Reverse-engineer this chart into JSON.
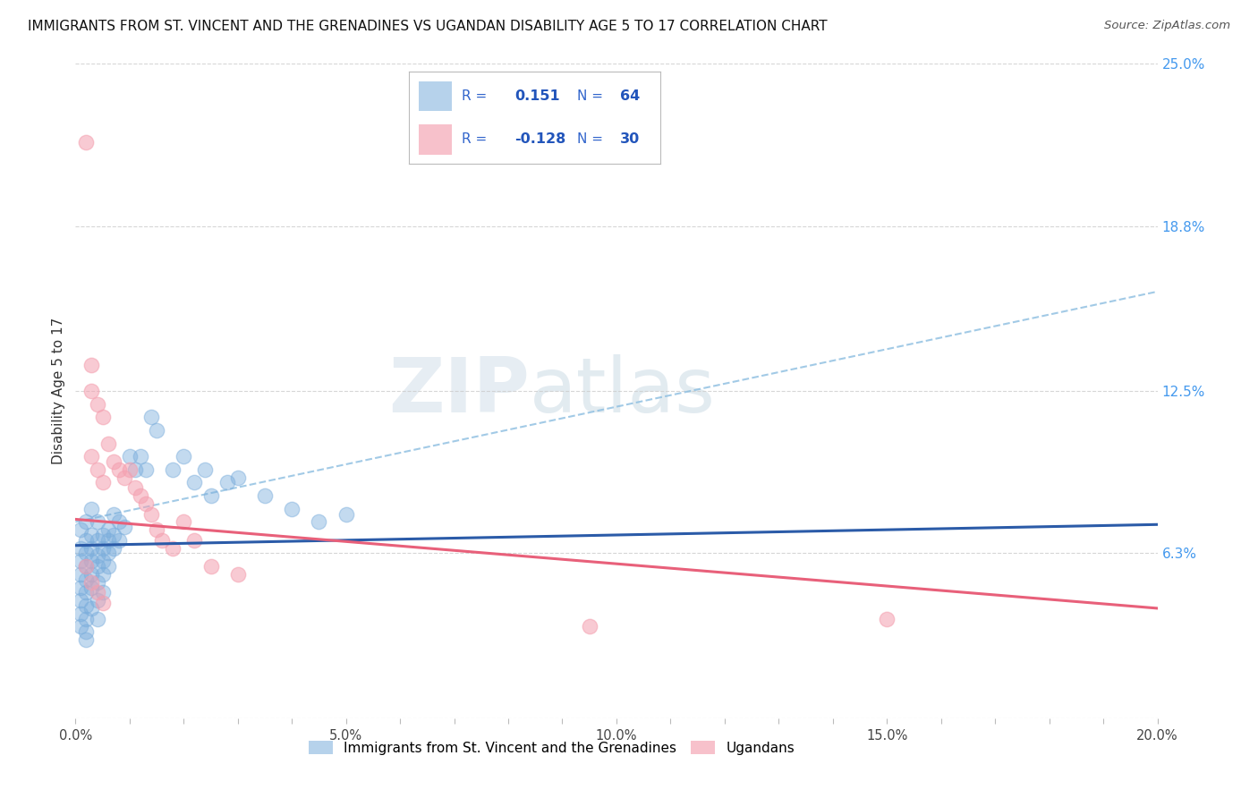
{
  "title": "IMMIGRANTS FROM ST. VINCENT AND THE GRENADINES VS UGANDAN DISABILITY AGE 5 TO 17 CORRELATION CHART",
  "source": "Source: ZipAtlas.com",
  "ylabel": "Disability Age 5 to 17",
  "xlim": [
    0.0,
    0.2
  ],
  "ylim": [
    0.0,
    0.25
  ],
  "ytick_labels_right": [
    "25.0%",
    "18.8%",
    "12.5%",
    "6.3%",
    ""
  ],
  "ytick_positions_right": [
    0.25,
    0.188,
    0.125,
    0.063,
    0.0
  ],
  "blue_color": "#7AADDC",
  "pink_color": "#F4A0B0",
  "blue_line_color": "#2B5BA8",
  "pink_line_color": "#E8607A",
  "blue_dash_color": "#8BBDE0",
  "blue_line_x": [
    0.0,
    0.2
  ],
  "blue_line_y": [
    0.066,
    0.074
  ],
  "pink_line_x": [
    0.0,
    0.2
  ],
  "pink_line_y": [
    0.076,
    0.042
  ],
  "dash_line_x": [
    0.0,
    0.2
  ],
  "dash_line_y": [
    0.075,
    0.163
  ],
  "blue_scatter": [
    [
      0.001,
      0.072
    ],
    [
      0.001,
      0.065
    ],
    [
      0.001,
      0.06
    ],
    [
      0.001,
      0.055
    ],
    [
      0.001,
      0.05
    ],
    [
      0.001,
      0.045
    ],
    [
      0.001,
      0.04
    ],
    [
      0.001,
      0.035
    ],
    [
      0.002,
      0.075
    ],
    [
      0.002,
      0.068
    ],
    [
      0.002,
      0.063
    ],
    [
      0.002,
      0.058
    ],
    [
      0.002,
      0.053
    ],
    [
      0.002,
      0.048
    ],
    [
      0.002,
      0.043
    ],
    [
      0.002,
      0.038
    ],
    [
      0.002,
      0.033
    ],
    [
      0.003,
      0.08
    ],
    [
      0.003,
      0.07
    ],
    [
      0.003,
      0.065
    ],
    [
      0.003,
      0.06
    ],
    [
      0.003,
      0.055
    ],
    [
      0.003,
      0.05
    ],
    [
      0.003,
      0.042
    ],
    [
      0.004,
      0.075
    ],
    [
      0.004,
      0.068
    ],
    [
      0.004,
      0.062
    ],
    [
      0.004,
      0.058
    ],
    [
      0.004,
      0.052
    ],
    [
      0.004,
      0.045
    ],
    [
      0.004,
      0.038
    ],
    [
      0.005,
      0.07
    ],
    [
      0.005,
      0.065
    ],
    [
      0.005,
      0.06
    ],
    [
      0.005,
      0.055
    ],
    [
      0.005,
      0.048
    ],
    [
      0.006,
      0.072
    ],
    [
      0.006,
      0.068
    ],
    [
      0.006,
      0.063
    ],
    [
      0.006,
      0.058
    ],
    [
      0.007,
      0.078
    ],
    [
      0.007,
      0.07
    ],
    [
      0.007,
      0.065
    ],
    [
      0.008,
      0.075
    ],
    [
      0.008,
      0.068
    ],
    [
      0.009,
      0.073
    ],
    [
      0.01,
      0.1
    ],
    [
      0.011,
      0.095
    ],
    [
      0.012,
      0.1
    ],
    [
      0.013,
      0.095
    ],
    [
      0.014,
      0.115
    ],
    [
      0.015,
      0.11
    ],
    [
      0.018,
      0.095
    ],
    [
      0.02,
      0.1
    ],
    [
      0.022,
      0.09
    ],
    [
      0.024,
      0.095
    ],
    [
      0.025,
      0.085
    ],
    [
      0.028,
      0.09
    ],
    [
      0.03,
      0.092
    ],
    [
      0.035,
      0.085
    ],
    [
      0.04,
      0.08
    ],
    [
      0.045,
      0.075
    ],
    [
      0.05,
      0.078
    ],
    [
      0.002,
      0.03
    ]
  ],
  "pink_scatter": [
    [
      0.002,
      0.22
    ],
    [
      0.003,
      0.135
    ],
    [
      0.003,
      0.125
    ],
    [
      0.004,
      0.12
    ],
    [
      0.005,
      0.115
    ],
    [
      0.003,
      0.1
    ],
    [
      0.004,
      0.095
    ],
    [
      0.005,
      0.09
    ],
    [
      0.006,
      0.105
    ],
    [
      0.007,
      0.098
    ],
    [
      0.008,
      0.095
    ],
    [
      0.009,
      0.092
    ],
    [
      0.01,
      0.095
    ],
    [
      0.011,
      0.088
    ],
    [
      0.012,
      0.085
    ],
    [
      0.013,
      0.082
    ],
    [
      0.014,
      0.078
    ],
    [
      0.015,
      0.072
    ],
    [
      0.016,
      0.068
    ],
    [
      0.018,
      0.065
    ],
    [
      0.02,
      0.075
    ],
    [
      0.022,
      0.068
    ],
    [
      0.025,
      0.058
    ],
    [
      0.03,
      0.055
    ],
    [
      0.002,
      0.058
    ],
    [
      0.003,
      0.052
    ],
    [
      0.004,
      0.048
    ],
    [
      0.005,
      0.044
    ],
    [
      0.095,
      0.035
    ],
    [
      0.15,
      0.038
    ]
  ],
  "watermark_zip": "ZIP",
  "watermark_atlas": "atlas",
  "background_color": "#ffffff",
  "grid_color": "#cccccc"
}
